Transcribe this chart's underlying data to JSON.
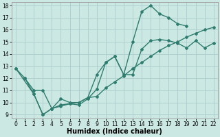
{
  "background_color": "#cce8e2",
  "grid_color": "#aacccc",
  "line_color": "#2e7d6e",
  "line1": {
    "x": [
      0,
      1,
      2,
      3,
      4,
      5,
      6,
      7,
      8,
      9,
      10,
      11,
      12,
      13,
      14,
      15,
      16,
      17,
      18,
      19
    ],
    "y": [
      12.8,
      12.0,
      10.7,
      9.0,
      9.5,
      9.7,
      9.9,
      9.8,
      10.3,
      11.1,
      13.3,
      13.8,
      12.3,
      15.0,
      17.5,
      18.0,
      17.3,
      17.0,
      16.5,
      16.3
    ]
  },
  "line2": {
    "x": [
      1,
      2,
      3,
      4,
      5,
      6,
      7,
      8,
      9,
      10,
      11,
      12,
      13,
      14,
      15,
      16,
      17,
      18,
      19,
      20,
      21,
      22
    ],
    "y": [
      12.0,
      11.0,
      11.0,
      9.5,
      10.3,
      10.0,
      10.0,
      10.4,
      12.3,
      13.3,
      13.8,
      12.3,
      12.3,
      14.4,
      15.1,
      15.2,
      15.1,
      14.9,
      14.5,
      15.1,
      14.5,
      14.9
    ]
  },
  "line3": {
    "x": [
      0,
      2,
      3,
      4,
      5,
      6,
      7,
      8,
      9,
      10,
      11,
      12,
      13,
      14,
      15,
      16,
      17,
      18,
      19,
      20,
      21,
      22
    ],
    "y": [
      12.8,
      10.7,
      9.0,
      9.5,
      9.8,
      9.9,
      10.0,
      10.4,
      10.5,
      11.2,
      11.7,
      12.2,
      12.8,
      13.3,
      13.8,
      14.3,
      14.7,
      15.0,
      15.4,
      15.7,
      16.0,
      16.2
    ]
  },
  "xlabel": "Humidex (Indice chaleur)",
  "xlim": [
    -0.5,
    22.5
  ],
  "ylim": [
    8.7,
    18.3
  ],
  "xticks": [
    0,
    1,
    2,
    3,
    4,
    5,
    6,
    7,
    8,
    9,
    10,
    11,
    12,
    13,
    14,
    15,
    16,
    17,
    18,
    19,
    20,
    21,
    22
  ],
  "yticks": [
    9,
    10,
    11,
    12,
    13,
    14,
    15,
    16,
    17,
    18
  ],
  "marker": "D",
  "markersize": 2.0,
  "linewidth": 1.0,
  "xlabel_fontsize": 7,
  "tick_fontsize": 5.5
}
